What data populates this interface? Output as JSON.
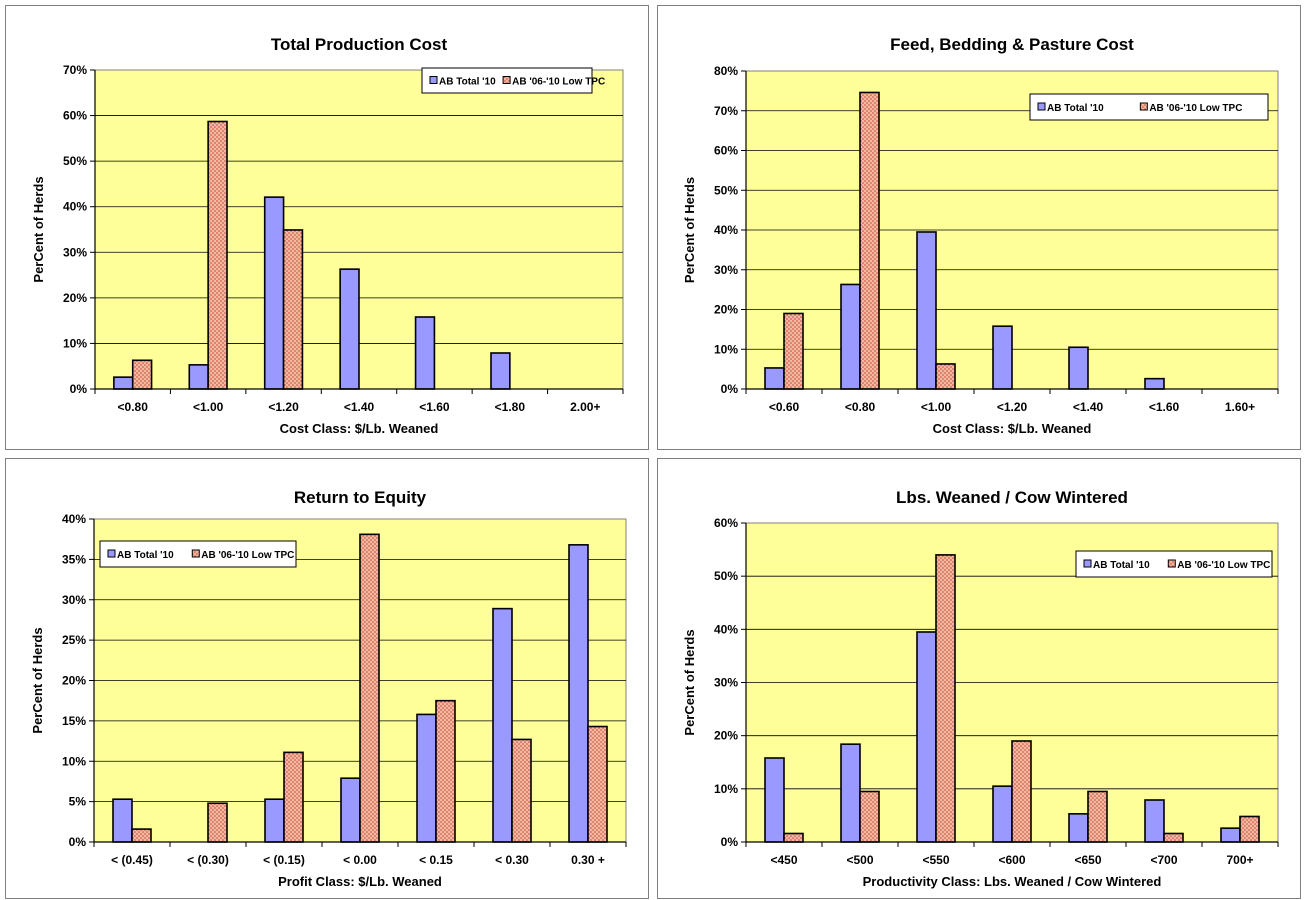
{
  "chart_data": [
    {
      "type": "bar",
      "title": "Total Production Cost",
      "xlabel": "Cost Class: $/Lb. Weaned",
      "ylabel": "PerCent of Herds",
      "ylim": [
        0,
        70
      ],
      "ytick_step": 10,
      "y_unit": "%",
      "grid": true,
      "legend": "top-right",
      "categories": [
        "<0.80",
        "<1.00",
        "<1.20",
        "<1.40",
        "<1.60",
        "<1.80",
        "2.00+"
      ],
      "series": [
        {
          "name": "AB Total '10",
          "values": [
            2.6,
            5.3,
            42.1,
            26.3,
            15.8,
            7.9,
            0
          ]
        },
        {
          "name": "AB '06-'10 Low TPC",
          "values": [
            6.3,
            58.7,
            34.9,
            0,
            0,
            0,
            0
          ]
        }
      ]
    },
    {
      "type": "bar",
      "title": "Feed, Bedding & Pasture Cost",
      "xlabel": "Cost Class: $/Lb. Weaned",
      "ylabel": "PerCent of Herds",
      "ylim": [
        0,
        80
      ],
      "ytick_step": 10,
      "y_unit": "%",
      "grid": true,
      "legend": "top-right",
      "categories": [
        "<0.60",
        "<0.80",
        "<1.00",
        "<1.20",
        "<1.40",
        "<1.60",
        "1.60+"
      ],
      "series": [
        {
          "name": "AB Total '10",
          "values": [
            5.3,
            26.3,
            39.5,
            15.8,
            10.5,
            2.6,
            0
          ]
        },
        {
          "name": "AB '06-'10 Low TPC",
          "values": [
            19.0,
            74.6,
            6.3,
            0,
            0,
            0,
            0
          ]
        }
      ]
    },
    {
      "type": "bar",
      "title": "Return to Equity",
      "xlabel": "Profit Class: $/Lb. Weaned",
      "ylabel": "PerCent of Herds",
      "ylim": [
        0,
        40
      ],
      "ytick_step": 5,
      "y_unit": "%",
      "grid": true,
      "legend": "top-left",
      "categories": [
        "< (0.45)",
        "< (0.30)",
        "< (0.15)",
        "< 0.00",
        "< 0.15",
        "< 0.30",
        "0.30 +"
      ],
      "series": [
        {
          "name": "AB Total '10",
          "values": [
            5.3,
            0,
            5.3,
            7.9,
            15.8,
            28.9,
            36.8
          ]
        },
        {
          "name": "AB '06-'10 Low TPC",
          "values": [
            1.6,
            4.8,
            11.1,
            38.1,
            17.5,
            12.7,
            14.3
          ]
        }
      ]
    },
    {
      "type": "bar",
      "title": "Lbs. Weaned / Cow Wintered",
      "xlabel": "Productivity Class: Lbs. Weaned / Cow Wintered",
      "ylabel": "PerCent of Herds",
      "ylim": [
        0,
        60
      ],
      "ytick_step": 10,
      "y_unit": "%",
      "grid": true,
      "legend": "top-right",
      "categories": [
        "<450",
        "<500",
        "<550",
        "<600",
        "<650",
        "<700",
        "700+"
      ],
      "series": [
        {
          "name": "AB Total '10",
          "values": [
            15.8,
            18.4,
            39.5,
            10.5,
            5.3,
            7.9,
            2.6
          ]
        },
        {
          "name": "AB '06-'10 Low TPC",
          "values": [
            1.6,
            9.5,
            54.0,
            19.0,
            9.5,
            1.6,
            4.8
          ]
        }
      ]
    }
  ],
  "colors": {
    "plot_background": "#ffff99",
    "series_1_fill": "#9999ff",
    "series_2_fill": "#f2b8a4",
    "series_2_dot": "#c24a2a",
    "gridline": "#000000"
  }
}
